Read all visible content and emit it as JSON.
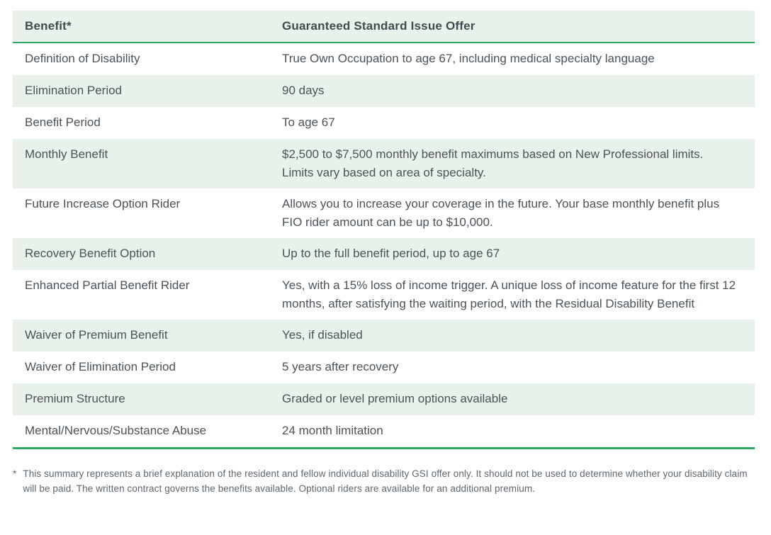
{
  "table": {
    "header": {
      "col1": "Benefit*",
      "col2": "Guaranteed Standard Issue Offer"
    },
    "rows": [
      {
        "benefit": "Definition of Disability",
        "offer": "True Own Occupation to age 67, including medical specialty language"
      },
      {
        "benefit": "Elimination Period",
        "offer": "90 days"
      },
      {
        "benefit": "Benefit Period",
        "offer": "To age 67"
      },
      {
        "benefit": "Monthly Benefit",
        "offer": "$2,500 to $7,500 monthly benefit maximums based on New Professional limits. Limits vary based on area of specialty."
      },
      {
        "benefit": "Future Increase Option Rider",
        "offer": "Allows you to increase your coverage in the future. Your base monthly benefit plus FIO rider amount can be up to $10,000."
      },
      {
        "benefit": "Recovery Benefit Option",
        "offer": "Up to the full benefit period, up to age 67"
      },
      {
        "benefit": "Enhanced Partial Benefit Rider",
        "offer": "Yes, with a 15% loss of income trigger. A unique loss of income feature for the first 12 months, after satisfying the waiting period, with the Residual Disability Benefit"
      },
      {
        "benefit": "Waiver of Premium Benefit",
        "offer": "Yes, if disabled"
      },
      {
        "benefit": "Waiver of Elimination Period",
        "offer": "5 years after recovery"
      },
      {
        "benefit": "Premium Structure",
        "offer": "Graded or level premium options available"
      },
      {
        "benefit": "Mental/Nervous/Substance Abuse",
        "offer": "24 month limitation"
      }
    ]
  },
  "footnote": {
    "marker": "*",
    "text": "This summary represents a brief explanation of the resident and fellow individual disability GSI offer only. It should not be used to determine whether your disability claim will be paid. The written contract governs the benefits available. Optional riders are available for an additional premium."
  },
  "colors": {
    "accent_green": "#2ea664",
    "row_tint": "#e9f1eb",
    "text_dark": "#4b5359",
    "text_footnote": "#5d666d"
  }
}
